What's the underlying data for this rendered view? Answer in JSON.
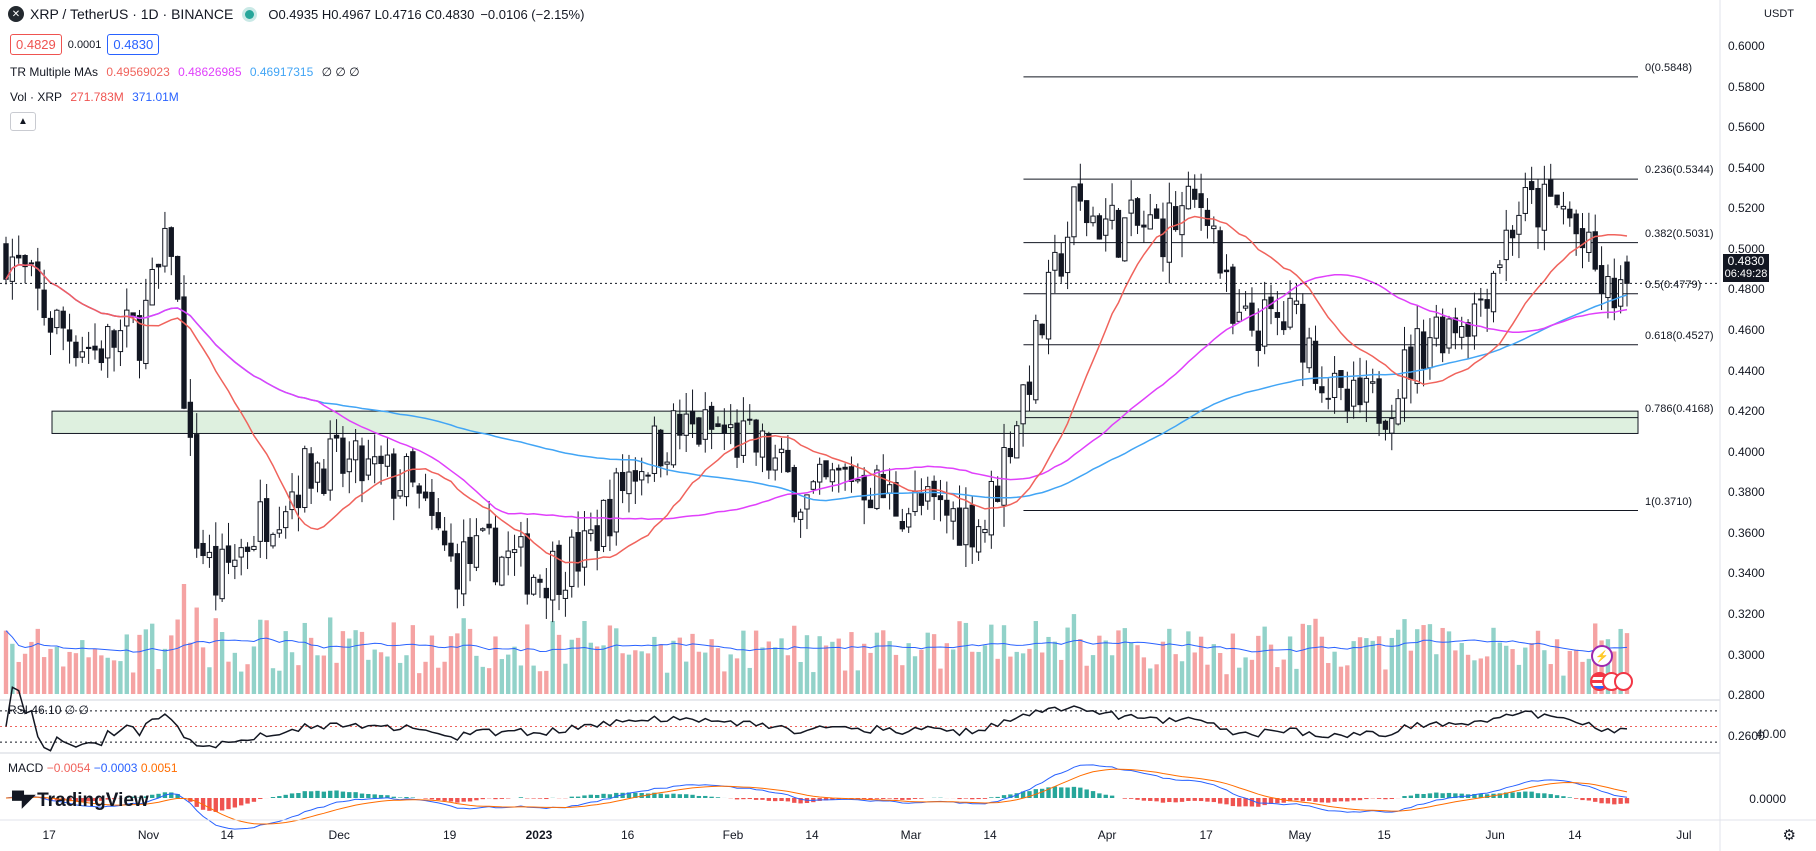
{
  "header": {
    "symbol": "XRP / TetherUS · 1D · BINANCE",
    "ohlc": "O0.4935 H0.4967 L0.4716 C0.4830",
    "change": "−0.0106 (−2.15%)"
  },
  "pricebox": {
    "bid": "0.4829",
    "spread": "0.0001",
    "ask": "0.4830"
  },
  "legend": {
    "ma_name": "TR Multiple MAs",
    "ma1": "0.49569023",
    "ma2": "0.48626985",
    "ma3": "0.46917315",
    "ma_extra": "∅ ∅ ∅",
    "vol_name": "Vol · XRP",
    "vol1": "271.783M",
    "vol2": "371.01M"
  },
  "collapse_icon": "chevron-up-icon",
  "currency": "USDT",
  "last_price": {
    "price": "0.4830",
    "countdown": "06:49:28"
  },
  "price_axis": [
    "0.6000",
    "0.5800",
    "0.5600",
    "0.5400",
    "0.5200",
    "0.5000",
    "0.4800",
    "0.4600",
    "0.4400",
    "0.4200",
    "0.4000",
    "0.3800",
    "0.3600",
    "0.3400",
    "0.3200",
    "0.3000",
    "0.2800",
    "0.2600"
  ],
  "x_axis": [
    "17",
    "Nov",
    "14",
    "Dec",
    "19",
    "2023",
    "16",
    "Feb",
    "14",
    "Mar",
    "14",
    "Apr",
    "17",
    "May",
    "15",
    "Jun",
    "14",
    "Jul"
  ],
  "fib_levels": [
    {
      "label": "0(0.5848)",
      "price": 0.5848
    },
    {
      "label": "0.236(0.5344)",
      "price": 0.5344
    },
    {
      "label": "0.382(0.5031)",
      "price": 0.5031
    },
    {
      "label": "0.5(0.4779)",
      "price": 0.4779
    },
    {
      "label": "0.618(0.4527)",
      "price": 0.4527
    },
    {
      "label": "0.786(0.4168)",
      "price": 0.4168
    },
    {
      "label": "1(0.3710)",
      "price": 0.371
    }
  ],
  "support_zone": {
    "low": 0.409,
    "high": 0.42
  },
  "rsi": {
    "name": "RSI",
    "value": "46.10",
    "extra": "∅ ∅",
    "level_label": "40.00"
  },
  "macd": {
    "name": "MACD",
    "v1": "−0.0054",
    "v2": "−0.0003",
    "v3": "0.0051",
    "level_label": "0.0000"
  },
  "branding": {
    "logo": "TradingView"
  },
  "colors": {
    "up": "#26a69a",
    "down": "#ef5350",
    "ma_fast": "#f0635c",
    "ma_mid": "#e040fb",
    "ma_slow": "#42a5f5",
    "vol_up": "#92d2c9",
    "vol_down": "#f5a3a3",
    "vol_ma": "#2962ff",
    "rsi": "#131722",
    "macd": "#2962ff",
    "signal": "#ff6d00"
  },
  "chart_data": {
    "type": "candlestick",
    "price_range": [
      0.25,
      0.605
    ],
    "ohlc_anchors": [
      [
        "2022-10-10",
        0.5
      ],
      [
        "2022-10-17",
        0.465
      ],
      [
        "2022-10-24",
        0.45
      ],
      [
        "2022-10-31",
        0.46
      ],
      [
        "2022-11-05",
        0.505
      ],
      [
        "2022-11-09",
        0.36
      ],
      [
        "2022-11-12",
        0.335
      ],
      [
        "2022-11-20",
        0.37
      ],
      [
        "2022-11-28",
        0.395
      ],
      [
        "2022-12-05",
        0.39
      ],
      [
        "2022-12-12",
        0.385
      ],
      [
        "2022-12-19",
        0.345
      ],
      [
        "2022-12-26",
        0.35
      ],
      [
        "2023-01-02",
        0.34
      ],
      [
        "2023-01-09",
        0.35
      ],
      [
        "2023-01-16",
        0.39
      ],
      [
        "2023-01-23",
        0.41
      ],
      [
        "2023-01-30",
        0.41
      ],
      [
        "2023-02-06",
        0.4
      ],
      [
        "2023-02-13",
        0.375
      ],
      [
        "2023-02-20",
        0.39
      ],
      [
        "2023-02-27",
        0.375
      ],
      [
        "2023-03-06",
        0.37
      ],
      [
        "2023-03-13",
        0.365
      ],
      [
        "2023-03-20",
        0.44
      ],
      [
        "2023-03-27",
        0.52
      ],
      [
        "2023-04-03",
        0.51
      ],
      [
        "2023-04-10",
        0.51
      ],
      [
        "2023-04-17",
        0.525
      ],
      [
        "2023-04-21",
        0.46
      ],
      [
        "2023-05-01",
        0.465
      ],
      [
        "2023-05-08",
        0.42
      ],
      [
        "2023-05-15",
        0.425
      ],
      [
        "2023-05-22",
        0.46
      ],
      [
        "2023-05-29",
        0.47
      ],
      [
        "2023-06-05",
        0.52
      ],
      [
        "2023-06-12",
        0.52
      ],
      [
        "2023-06-19",
        0.475
      ],
      [
        "2023-06-22",
        0.483
      ]
    ],
    "last": {
      "date": "2023-06-22",
      "open": 0.4935,
      "high": 0.4967,
      "low": 0.4716,
      "close": 0.483
    }
  }
}
